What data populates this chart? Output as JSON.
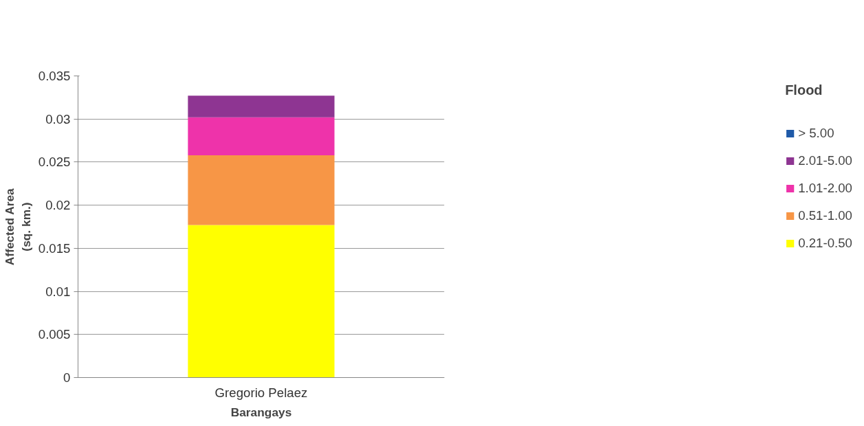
{
  "chart_data": {
    "type": "bar",
    "stacked": true,
    "xlabel": "Barangays",
    "ylabel": "Affected Area\n(sq. km.)",
    "legend_title": "Flood",
    "legend": "right",
    "grid": "y",
    "categories": [
      "Gregorio Pelaez"
    ],
    "ylim": [
      0,
      0.035
    ],
    "yticks": [
      0,
      0.005,
      0.01,
      0.015,
      0.02,
      0.025,
      0.03,
      0.035
    ],
    "series": [
      {
        "name": "0.21-0.50",
        "color": "#ffff00",
        "values": [
          0.0177
        ]
      },
      {
        "name": "0.51-1.00",
        "color": "#f79646",
        "values": [
          0.0081
        ]
      },
      {
        "name": "1.01-2.00",
        "color": "#ee33aa",
        "values": [
          0.0044
        ]
      },
      {
        "name": "2.01-5.00",
        "color": "#8e3592",
        "values": [
          0.0025
        ]
      },
      {
        "name": "> 5.00",
        "color": "#1f5aa8",
        "values": [
          0
        ]
      }
    ]
  }
}
